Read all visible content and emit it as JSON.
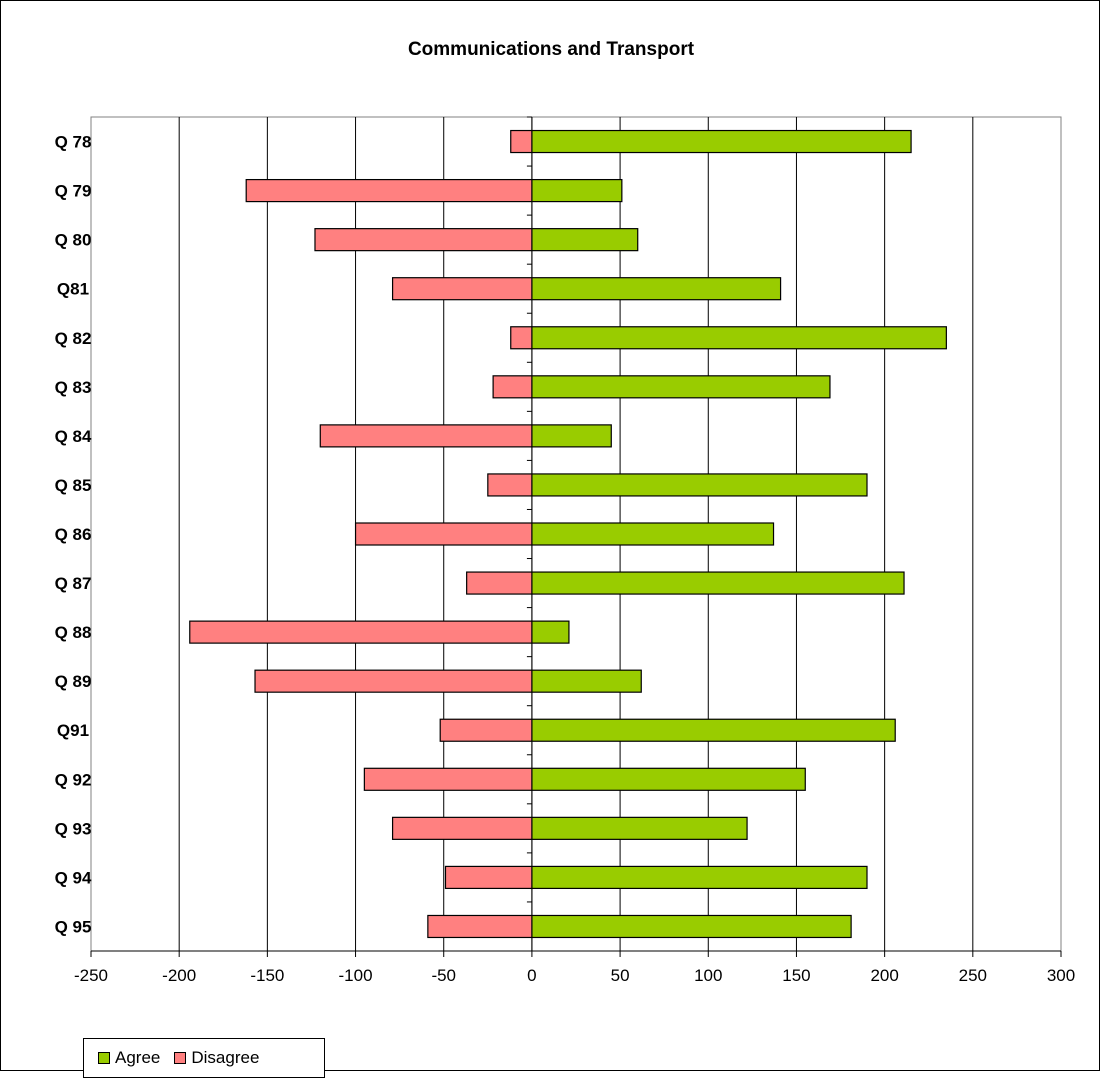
{
  "chart_data": {
    "type": "bar",
    "orientation": "horizontal",
    "stacked": "diverging",
    "title": "Communications and Transport",
    "categories": [
      "Q 78",
      "Q 79",
      "Q 80",
      "Q81",
      "Q 82",
      "Q 83",
      "Q 84",
      "Q 85",
      "Q 86",
      "Q 87",
      "Q 88",
      "Q 89",
      "Q91",
      "Q 92",
      "Q 93",
      "Q 94",
      "Q 95"
    ],
    "series": [
      {
        "name": "Agree",
        "color": "#99cc00",
        "values": [
          215,
          51,
          60,
          141,
          235,
          169,
          45,
          190,
          137,
          211,
          21,
          62,
          206,
          155,
          122,
          190,
          181
        ]
      },
      {
        "name": "Disagree",
        "color": "#ff8080",
        "values": [
          -12,
          -162,
          -123,
          -79,
          -12,
          -22,
          -120,
          -25,
          -100,
          -37,
          -194,
          -157,
          -52,
          -95,
          -79,
          -49,
          -59
        ]
      }
    ],
    "xlim": [
      -250,
      300
    ],
    "xticks": [
      -250,
      -200,
      -150,
      -100,
      -50,
      0,
      50,
      100,
      150,
      200,
      250,
      300
    ],
    "xgrid": true,
    "legend_position": "bottom-left"
  }
}
